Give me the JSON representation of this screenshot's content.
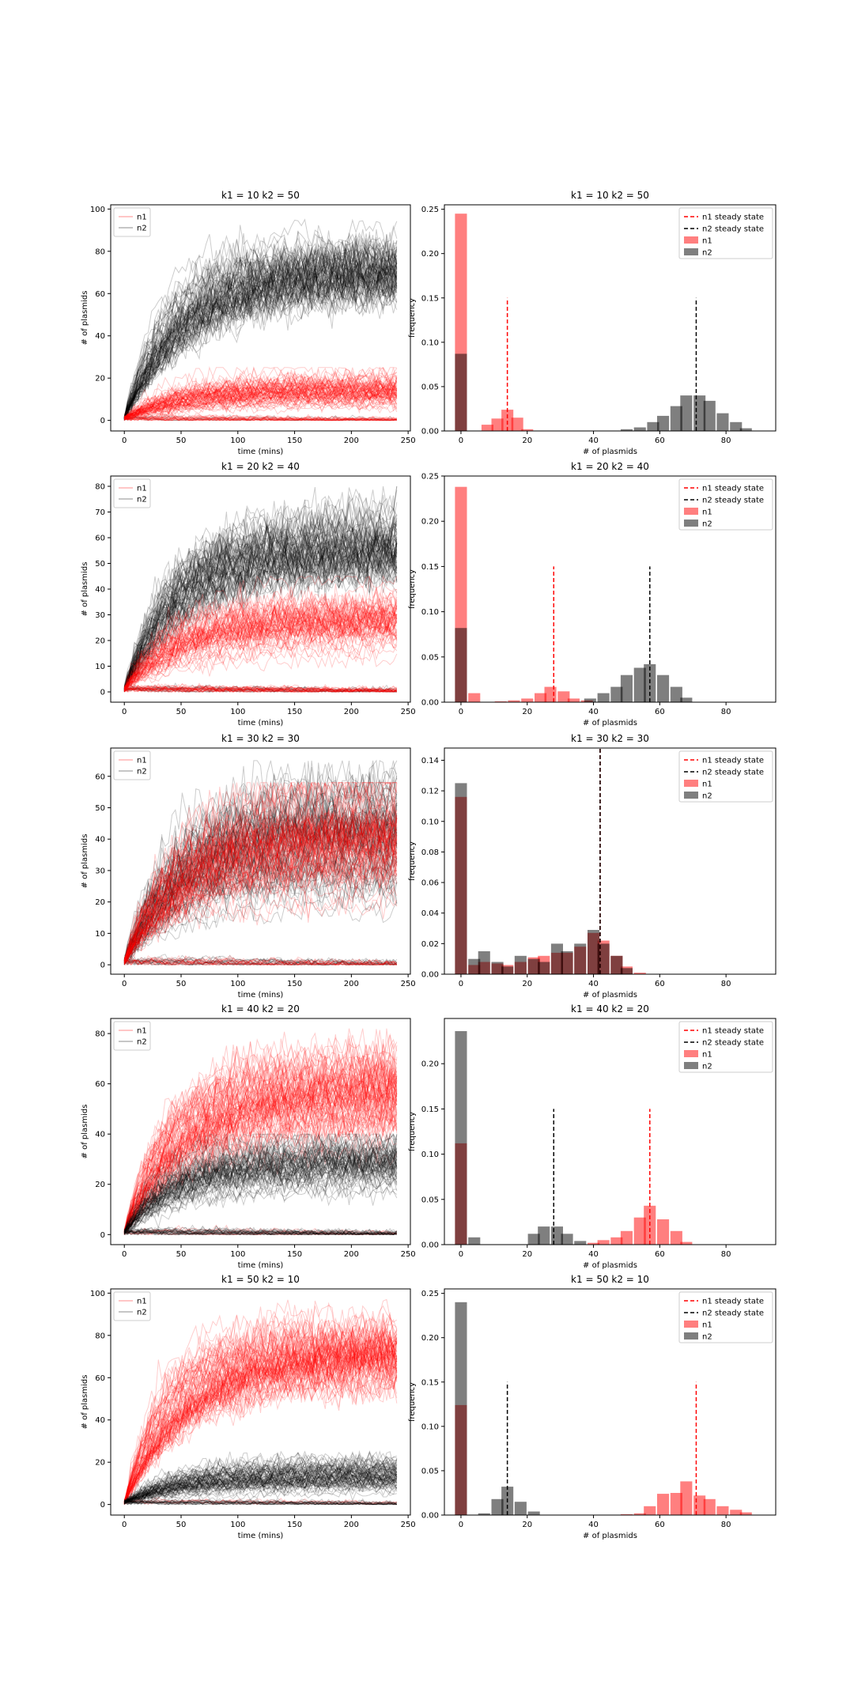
{
  "figure": {
    "rows": 5,
    "cols": 2
  },
  "chart_data": [
    {
      "type": "line",
      "title": "k1 = 10 k2 = 50",
      "xlabel": "time (mins)",
      "ylabel": "# of plasmids",
      "xlim": [
        -12,
        252
      ],
      "ylim": [
        -5,
        102
      ],
      "xticks": [
        0,
        50,
        100,
        150,
        200,
        250
      ],
      "yticks": [
        0,
        20,
        40,
        60,
        80,
        100
      ],
      "legend": "upper left",
      "series": [
        {
          "name": "n1",
          "color": "#ff0000",
          "plateau": 14,
          "spread": 4,
          "dead_fraction": 0.25,
          "max_value": 25
        },
        {
          "name": "n2",
          "color": "#000000",
          "plateau": 71,
          "spread": 7,
          "dead_fraction": 0.05,
          "max_value": 95
        }
      ]
    },
    {
      "type": "bar",
      "title": "k1 = 10 k2 = 50",
      "xlabel": "# of plasmids",
      "ylabel": "frequency",
      "xlim": [
        -5,
        95
      ],
      "ylim": [
        0,
        0.255
      ],
      "xticks": [
        0,
        20,
        40,
        60,
        80
      ],
      "yticks": [
        0,
        0.05,
        0.1,
        0.15,
        0.2,
        0.25
      ],
      "ytick_labels": [
        "0.00",
        "0.05",
        "0.10",
        "0.15",
        "0.20",
        "0.25"
      ],
      "legend": "upper right",
      "bin_width": 3.6,
      "steady_states": [
        {
          "name": "n1 steady state",
          "color": "#ff0000",
          "x": 14,
          "height": 0.15
        },
        {
          "name": "n2 steady state",
          "color": "#000000",
          "x": 71,
          "height": 0.15
        }
      ],
      "series": [
        {
          "name": "n1",
          "color": "#ff0000",
          "alpha": 0.5,
          "x": [
            0,
            8,
            11,
            14,
            17,
            20
          ],
          "values": [
            0.245,
            0.007,
            0.014,
            0.024,
            0.015,
            0.002
          ]
        },
        {
          "name": "n2",
          "color": "#000000",
          "alpha": 0.5,
          "x": [
            0,
            50,
            54,
            58,
            61,
            65,
            68,
            72,
            75,
            79,
            83,
            86
          ],
          "values": [
            0.087,
            0.002,
            0.004,
            0.01,
            0.017,
            0.028,
            0.04,
            0.04,
            0.034,
            0.02,
            0.01,
            0.003
          ]
        }
      ]
    },
    {
      "type": "line",
      "title": "k1 = 20 k2 = 40",
      "xlabel": "time (mins)",
      "ylabel": "# of plasmids",
      "xlim": [
        -12,
        252
      ],
      "ylim": [
        -4,
        84
      ],
      "xticks": [
        0,
        50,
        100,
        150,
        200,
        250
      ],
      "yticks": [
        0,
        10,
        20,
        30,
        40,
        50,
        60,
        70,
        80
      ],
      "legend": "upper left",
      "series": [
        {
          "name": "n1",
          "color": "#ff0000",
          "plateau": 28,
          "spread": 6,
          "dead_fraction": 0.25,
          "max_value": 45
        },
        {
          "name": "n2",
          "color": "#000000",
          "plateau": 56,
          "spread": 8,
          "dead_fraction": 0.08,
          "max_value": 80
        }
      ]
    },
    {
      "type": "bar",
      "title": "k1 = 20 k2 = 40",
      "xlabel": "# of plasmids",
      "ylabel": "frequency",
      "xlim": [
        -5,
        95
      ],
      "ylim": [
        0,
        0.25
      ],
      "xticks": [
        0,
        20,
        40,
        60,
        80
      ],
      "yticks": [
        0,
        0.05,
        0.1,
        0.15,
        0.2,
        0.25
      ],
      "ytick_labels": [
        "0.00",
        "0.05",
        "0.10",
        "0.15",
        "0.20",
        "0.25"
      ],
      "legend": "upper right",
      "bin_width": 3.6,
      "steady_states": [
        {
          "name": "n1 steady state",
          "color": "#ff0000",
          "x": 28,
          "height": 0.15
        },
        {
          "name": "n2 steady state",
          "color": "#000000",
          "x": 57,
          "height": 0.15
        }
      ],
      "series": [
        {
          "name": "n1",
          "color": "#ff0000",
          "alpha": 0.5,
          "x": [
            0,
            4,
            12,
            16,
            20,
            24,
            27,
            31,
            34,
            38
          ],
          "values": [
            0.238,
            0.01,
            0.001,
            0.002,
            0.004,
            0.01,
            0.017,
            0.012,
            0.004,
            0.002
          ]
        },
        {
          "name": "n2",
          "color": "#000000",
          "alpha": 0.5,
          "x": [
            0,
            39,
            43,
            47,
            50,
            54,
            57,
            61,
            65,
            68
          ],
          "values": [
            0.082,
            0.004,
            0.01,
            0.017,
            0.03,
            0.038,
            0.042,
            0.03,
            0.017,
            0.005
          ]
        }
      ]
    },
    {
      "type": "line",
      "title": "k1 = 30 k2 = 30",
      "xlabel": "time (mins)",
      "ylabel": "# of plasmids",
      "xlim": [
        -12,
        252
      ],
      "ylim": [
        -3,
        69
      ],
      "xticks": [
        0,
        50,
        100,
        150,
        200,
        250
      ],
      "yticks": [
        0,
        10,
        20,
        30,
        40,
        50,
        60
      ],
      "legend": "upper left",
      "series": [
        {
          "name": "n1",
          "color": "#ff0000",
          "plateau": 42,
          "spread": 10,
          "dead_fraction": 0.15,
          "max_value": 58
        },
        {
          "name": "n2",
          "color": "#000000",
          "plateau": 42,
          "spread": 10,
          "dead_fraction": 0.15,
          "max_value": 65
        }
      ]
    },
    {
      "type": "bar",
      "title": "k1 = 30 k2 = 30",
      "xlabel": "# of plasmids",
      "ylabel": "frequency",
      "xlim": [
        -5,
        95
      ],
      "ylim": [
        0,
        0.148
      ],
      "xticks": [
        0,
        20,
        40,
        60,
        80
      ],
      "yticks": [
        0,
        0.02,
        0.04,
        0.06,
        0.08,
        0.1,
        0.12,
        0.14
      ],
      "ytick_labels": [
        "0.00",
        "0.02",
        "0.04",
        "0.06",
        "0.08",
        "0.10",
        "0.12",
        "0.14"
      ],
      "legend": "upper right",
      "bin_width": 3.6,
      "steady_states": [
        {
          "name": "n1 steady state",
          "color": "#ff0000",
          "x": 42,
          "height": 0.15
        },
        {
          "name": "n2 steady state",
          "color": "#000000",
          "x": 42,
          "height": 0.15
        }
      ],
      "series": [
        {
          "name": "n1",
          "color": "#ff0000",
          "alpha": 0.5,
          "x": [
            0,
            4,
            7,
            11,
            14,
            18,
            22,
            25,
            29,
            32,
            36,
            40,
            43,
            47,
            50,
            54
          ],
          "values": [
            0.116,
            0.006,
            0.008,
            0.007,
            0.006,
            0.008,
            0.011,
            0.012,
            0.014,
            0.014,
            0.018,
            0.027,
            0.022,
            0.012,
            0.005,
            0.001
          ]
        },
        {
          "name": "n2",
          "color": "#000000",
          "alpha": 0.5,
          "x": [
            0,
            4,
            7,
            11,
            14,
            18,
            22,
            25,
            29,
            32,
            36,
            40,
            43,
            47,
            50
          ],
          "values": [
            0.125,
            0.01,
            0.015,
            0.008,
            0.005,
            0.012,
            0.01,
            0.008,
            0.02,
            0.015,
            0.02,
            0.029,
            0.02,
            0.012,
            0.004
          ]
        }
      ]
    },
    {
      "type": "line",
      "title": "k1 = 40 k2 = 20",
      "xlabel": "time (mins)",
      "ylabel": "# of plasmids",
      "xlim": [
        -12,
        252
      ],
      "ylim": [
        -4,
        86
      ],
      "xticks": [
        0,
        50,
        100,
        150,
        200,
        250
      ],
      "yticks": [
        0,
        20,
        40,
        60,
        80
      ],
      "legend": "upper left",
      "series": [
        {
          "name": "n1",
          "color": "#ff0000",
          "plateau": 57,
          "spread": 8,
          "dead_fraction": 0.1,
          "max_value": 82
        },
        {
          "name": "n2",
          "color": "#000000",
          "plateau": 28,
          "spread": 5,
          "dead_fraction": 0.25,
          "max_value": 40
        }
      ]
    },
    {
      "type": "bar",
      "title": "k1 = 40 k2 = 20",
      "xlabel": "# of plasmids",
      "ylabel": "frequency",
      "xlim": [
        -5,
        95
      ],
      "ylim": [
        0,
        0.25
      ],
      "xticks": [
        0,
        20,
        40,
        60,
        80
      ],
      "yticks": [
        0,
        0.05,
        0.1,
        0.15,
        0.2
      ],
      "ytick_labels": [
        "0.00",
        "0.05",
        "0.10",
        "0.15",
        "0.20"
      ],
      "legend": "upper right",
      "bin_width": 3.6,
      "steady_states": [
        {
          "name": "n1 steady state",
          "color": "#ff0000",
          "x": 57,
          "height": 0.15
        },
        {
          "name": "n2 steady state",
          "color": "#000000",
          "x": 28,
          "height": 0.15
        }
      ],
      "series": [
        {
          "name": "n1",
          "color": "#ff0000",
          "alpha": 0.5,
          "x": [
            0,
            40,
            43,
            47,
            50,
            54,
            57,
            61,
            65,
            68
          ],
          "values": [
            0.112,
            0.002,
            0.005,
            0.008,
            0.015,
            0.03,
            0.043,
            0.028,
            0.015,
            0.003
          ]
        },
        {
          "name": "n2",
          "color": "#000000",
          "alpha": 0.5,
          "x": [
            0,
            4,
            22,
            25,
            29,
            32,
            36
          ],
          "values": [
            0.236,
            0.008,
            0.012,
            0.02,
            0.02,
            0.012,
            0.004
          ]
        }
      ]
    },
    {
      "type": "line",
      "title": "k1 = 50 k2 = 10",
      "xlabel": "time (mins)",
      "ylabel": "# of plasmids",
      "xlim": [
        -12,
        252
      ],
      "ylim": [
        -5,
        102
      ],
      "xticks": [
        0,
        50,
        100,
        150,
        200,
        250
      ],
      "yticks": [
        0,
        20,
        40,
        60,
        80,
        100
      ],
      "legend": "upper left",
      "series": [
        {
          "name": "n1",
          "color": "#ff0000",
          "plateau": 71,
          "spread": 7,
          "dead_fraction": 0.05,
          "max_value": 97
        },
        {
          "name": "n2",
          "color": "#000000",
          "plateau": 14,
          "spread": 4,
          "dead_fraction": 0.25,
          "max_value": 25
        }
      ]
    },
    {
      "type": "bar",
      "title": "k1 = 50 k2 = 10",
      "xlabel": "# of plasmids",
      "ylabel": "frequency",
      "xlim": [
        -5,
        95
      ],
      "ylim": [
        0,
        0.255
      ],
      "xticks": [
        0,
        20,
        40,
        60,
        80
      ],
      "yticks": [
        0,
        0.05,
        0.1,
        0.15,
        0.2,
        0.25
      ],
      "ytick_labels": [
        "0.00",
        "0.05",
        "0.10",
        "0.15",
        "0.20",
        "0.25"
      ],
      "legend": "upper right",
      "bin_width": 3.6,
      "steady_states": [
        {
          "name": "n1 steady state",
          "color": "#ff0000",
          "x": 71,
          "height": 0.15
        },
        {
          "name": "n2 steady state",
          "color": "#000000",
          "x": 14,
          "height": 0.15
        }
      ],
      "series": [
        {
          "name": "n1",
          "color": "#ff0000",
          "alpha": 0.5,
          "x": [
            0,
            50,
            54,
            57,
            61,
            65,
            68,
            72,
            75,
            79,
            83,
            86
          ],
          "values": [
            0.124,
            0.001,
            0.002,
            0.01,
            0.024,
            0.025,
            0.038,
            0.022,
            0.018,
            0.01,
            0.006,
            0.003
          ]
        },
        {
          "name": "n2",
          "color": "#000000",
          "alpha": 0.5,
          "x": [
            0,
            7,
            11,
            14,
            18,
            22
          ],
          "values": [
            0.24,
            0.002,
            0.018,
            0.032,
            0.015,
            0.004
          ]
        }
      ]
    }
  ]
}
